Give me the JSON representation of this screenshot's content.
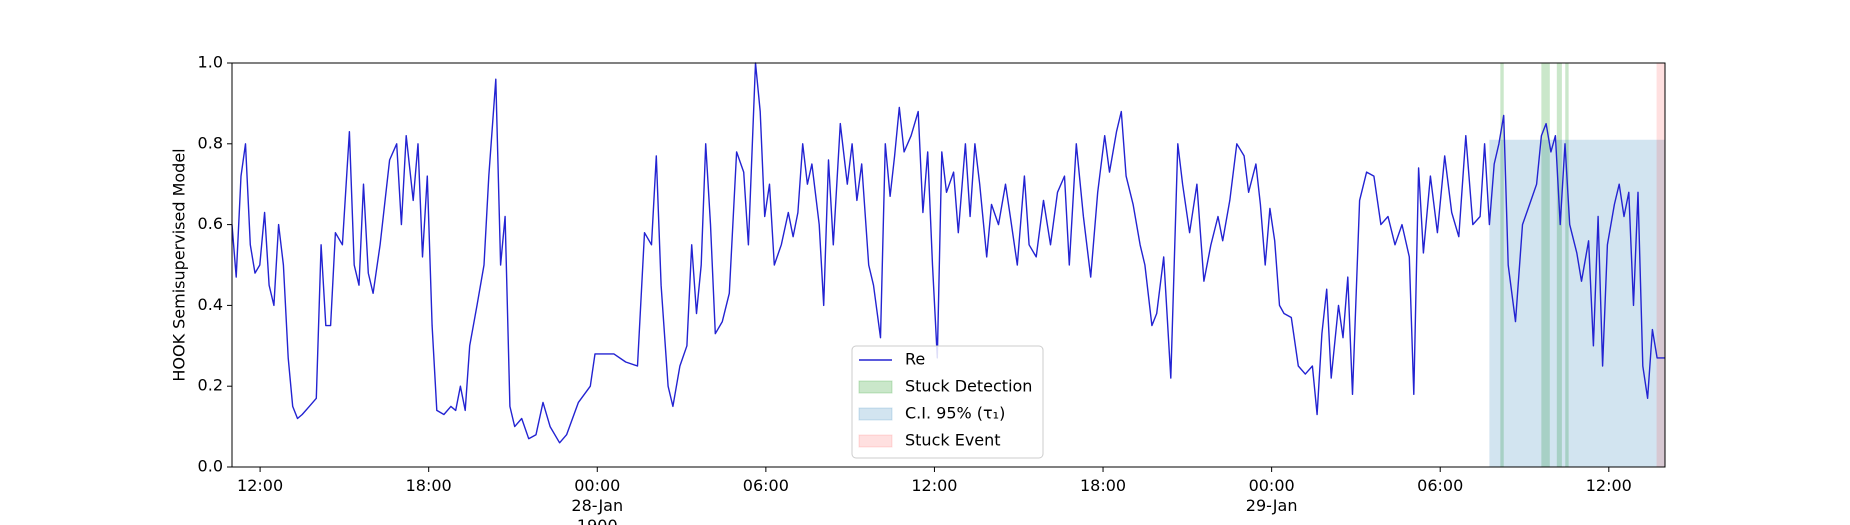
{
  "chart_data": {
    "type": "line",
    "ylabel": "HOOK Semisupervised Model",
    "xlim": [
      -13,
      38
    ],
    "xticks": [
      {
        "value": -12,
        "label": "12:00"
      },
      {
        "value": -6,
        "label": "18:00"
      },
      {
        "value": 0,
        "label": "00:00\n28-Jan\n1900"
      },
      {
        "value": 6,
        "label": "06:00"
      },
      {
        "value": 12,
        "label": "12:00"
      },
      {
        "value": 18,
        "label": "18:00"
      },
      {
        "value": 24,
        "label": "00:00\n29-Jan"
      },
      {
        "value": 30,
        "label": "06:00"
      },
      {
        "value": 36,
        "label": "12:00"
      }
    ],
    "ylim": [
      0,
      1
    ],
    "yticks": [
      {
        "value": 0,
        "label": "0.0"
      },
      {
        "value": 0.2,
        "label": "0.2"
      },
      {
        "value": 0.4,
        "label": "0.4"
      },
      {
        "value": 0.6,
        "label": "0.6"
      },
      {
        "value": 0.8,
        "label": "0.8"
      },
      {
        "value": 1,
        "label": "1.0"
      }
    ],
    "grid": false,
    "legend": "lower center",
    "series": [
      {
        "name": "Re",
        "color": "#2323d2",
        "x": [
          -13,
          -12.85,
          -12.68,
          -12.52,
          -12.35,
          -12.18,
          -12.01,
          -11.84,
          -11.68,
          -11.51,
          -11.34,
          -11.17,
          -11,
          -10.84,
          -10.67,
          -10.5,
          -10.25,
          -10,
          -9.83,
          -9.66,
          -9.49,
          -9.32,
          -9.07,
          -8.82,
          -8.65,
          -8.48,
          -8.32,
          -8.15,
          -7.98,
          -7.73,
          -7.39,
          -7.14,
          -6.97,
          -6.8,
          -6.55,
          -6.38,
          -6.22,
          -6.05,
          -5.88,
          -5.71,
          -5.46,
          -5.21,
          -5.04,
          -4.87,
          -4.7,
          -4.54,
          -4.28,
          -4.03,
          -3.86,
          -3.61,
          -3.44,
          -3.28,
          -3.11,
          -2.94,
          -2.69,
          -2.44,
          -2.18,
          -1.93,
          -1.68,
          -1.34,
          -1.09,
          -0.67,
          -0.25,
          -0.08,
          0.17,
          0.59,
          1.01,
          1.43,
          1.68,
          1.93,
          2.1,
          2.27,
          2.52,
          2.69,
          2.94,
          3.19,
          3.36,
          3.53,
          3.7,
          3.86,
          4.03,
          4.2,
          4.45,
          4.7,
          4.96,
          5.21,
          5.38,
          5.63,
          5.8,
          5.96,
          6.13,
          6.3,
          6.55,
          6.8,
          6.97,
          7.14,
          7.31,
          7.48,
          7.64,
          7.9,
          8.06,
          8.23,
          8.4,
          8.65,
          8.9,
          9.07,
          9.24,
          9.41,
          9.66,
          9.83,
          10.08,
          10.25,
          10.42,
          10.58,
          10.75,
          10.92,
          11.17,
          11.42,
          11.59,
          11.76,
          11.93,
          12.1,
          12.26,
          12.43,
          12.68,
          12.85,
          13.1,
          13.27,
          13.44,
          13.61,
          13.86,
          14.03,
          14.28,
          14.53,
          14.7,
          14.95,
          15.2,
          15.37,
          15.62,
          15.88,
          16.13,
          16.38,
          16.63,
          16.8,
          17.05,
          17.3,
          17.56,
          17.81,
          18.06,
          18.23,
          18.48,
          18.65,
          18.82,
          19.07,
          19.32,
          19.49,
          19.74,
          19.91,
          20.16,
          20.41,
          20.66,
          20.83,
          21.08,
          21.34,
          21.59,
          21.84,
          22.09,
          22.26,
          22.51,
          22.76,
          23.02,
          23.18,
          23.44,
          23.6,
          23.77,
          23.94,
          24.11,
          24.28,
          24.44,
          24.7,
          24.95,
          25.2,
          25.45,
          25.62,
          25.79,
          25.96,
          26.12,
          26.38,
          26.54,
          26.71,
          26.88,
          27.13,
          27.38,
          27.64,
          27.89,
          28.14,
          28.39,
          28.64,
          28.9,
          29.06,
          29.23,
          29.4,
          29.65,
          29.9,
          30.16,
          30.41,
          30.66,
          30.91,
          31.16,
          31.42,
          31.58,
          31.75,
          31.92,
          32.09,
          32.26,
          32.42,
          32.68,
          32.93,
          33.18,
          33.43,
          33.6,
          33.77,
          33.94,
          34.1,
          34.27,
          34.44,
          34.61,
          34.86,
          35.03,
          35.28,
          35.45,
          35.62,
          35.78,
          35.95,
          36.2,
          36.37,
          36.54,
          36.71,
          36.88,
          37.04,
          37.21,
          37.38,
          37.55,
          37.72,
          38
        ],
        "values": [
          0.6,
          0.47,
          0.72,
          0.8,
          0.55,
          0.48,
          0.5,
          0.63,
          0.45,
          0.4,
          0.6,
          0.5,
          0.27,
          0.15,
          0.12,
          0.13,
          0.15,
          0.17,
          0.55,
          0.35,
          0.35,
          0.58,
          0.55,
          0.83,
          0.5,
          0.45,
          0.7,
          0.48,
          0.43,
          0.55,
          0.76,
          0.8,
          0.6,
          0.82,
          0.66,
          0.8,
          0.52,
          0.72,
          0.35,
          0.14,
          0.13,
          0.15,
          0.14,
          0.2,
          0.14,
          0.3,
          0.4,
          0.5,
          0.72,
          0.96,
          0.5,
          0.62,
          0.15,
          0.1,
          0.12,
          0.07,
          0.08,
          0.16,
          0.1,
          0.06,
          0.08,
          0.16,
          0.2,
          0.28,
          0.28,
          0.28,
          0.26,
          0.25,
          0.58,
          0.55,
          0.77,
          0.45,
          0.2,
          0.15,
          0.25,
          0.3,
          0.55,
          0.38,
          0.5,
          0.8,
          0.6,
          0.33,
          0.36,
          0.43,
          0.78,
          0.73,
          0.55,
          1.0,
          0.88,
          0.62,
          0.7,
          0.5,
          0.55,
          0.63,
          0.57,
          0.63,
          0.8,
          0.7,
          0.75,
          0.6,
          0.4,
          0.76,
          0.55,
          0.85,
          0.7,
          0.8,
          0.66,
          0.75,
          0.5,
          0.45,
          0.32,
          0.8,
          0.67,
          0.77,
          0.89,
          0.78,
          0.82,
          0.88,
          0.63,
          0.78,
          0.5,
          0.27,
          0.78,
          0.68,
          0.73,
          0.58,
          0.8,
          0.62,
          0.8,
          0.7,
          0.52,
          0.65,
          0.6,
          0.7,
          0.62,
          0.5,
          0.72,
          0.55,
          0.52,
          0.66,
          0.55,
          0.68,
          0.72,
          0.5,
          0.8,
          0.62,
          0.47,
          0.68,
          0.82,
          0.73,
          0.83,
          0.88,
          0.72,
          0.65,
          0.55,
          0.5,
          0.35,
          0.38,
          0.52,
          0.22,
          0.8,
          0.7,
          0.58,
          0.7,
          0.46,
          0.55,
          0.62,
          0.56,
          0.66,
          0.8,
          0.77,
          0.68,
          0.75,
          0.65,
          0.5,
          0.64,
          0.56,
          0.4,
          0.38,
          0.37,
          0.25,
          0.23,
          0.25,
          0.13,
          0.33,
          0.44,
          0.22,
          0.4,
          0.32,
          0.47,
          0.18,
          0.66,
          0.73,
          0.72,
          0.6,
          0.62,
          0.55,
          0.6,
          0.52,
          0.18,
          0.74,
          0.53,
          0.72,
          0.58,
          0.77,
          0.63,
          0.57,
          0.82,
          0.6,
          0.62,
          0.8,
          0.6,
          0.75,
          0.8,
          0.87,
          0.5,
          0.36,
          0.6,
          0.65,
          0.7,
          0.82,
          0.85,
          0.78,
          0.82,
          0.6,
          0.8,
          0.6,
          0.53,
          0.46,
          0.56,
          0.3,
          0.62,
          0.25,
          0.55,
          0.65,
          0.7,
          0.62,
          0.68,
          0.4,
          0.68,
          0.25,
          0.17,
          0.34,
          0.27,
          0.27
        ]
      }
    ],
    "bands": [
      {
        "name": "Stuck Detection",
        "color": "#2ca02c",
        "x": [
          [
            32.14,
            32.26
          ],
          [
            33.6,
            33.9
          ],
          [
            34.15,
            34.33
          ],
          [
            34.45,
            34.57
          ]
        ]
      },
      {
        "name": "C.I. 95% (τ₁)",
        "color": "#1f77b4",
        "x": [
          [
            31.75,
            38
          ]
        ],
        "y": [
          0,
          0.81
        ]
      },
      {
        "name": "Stuck Event",
        "color": "#ff0000",
        "x": [
          [
            37.7,
            38
          ]
        ]
      }
    ]
  }
}
